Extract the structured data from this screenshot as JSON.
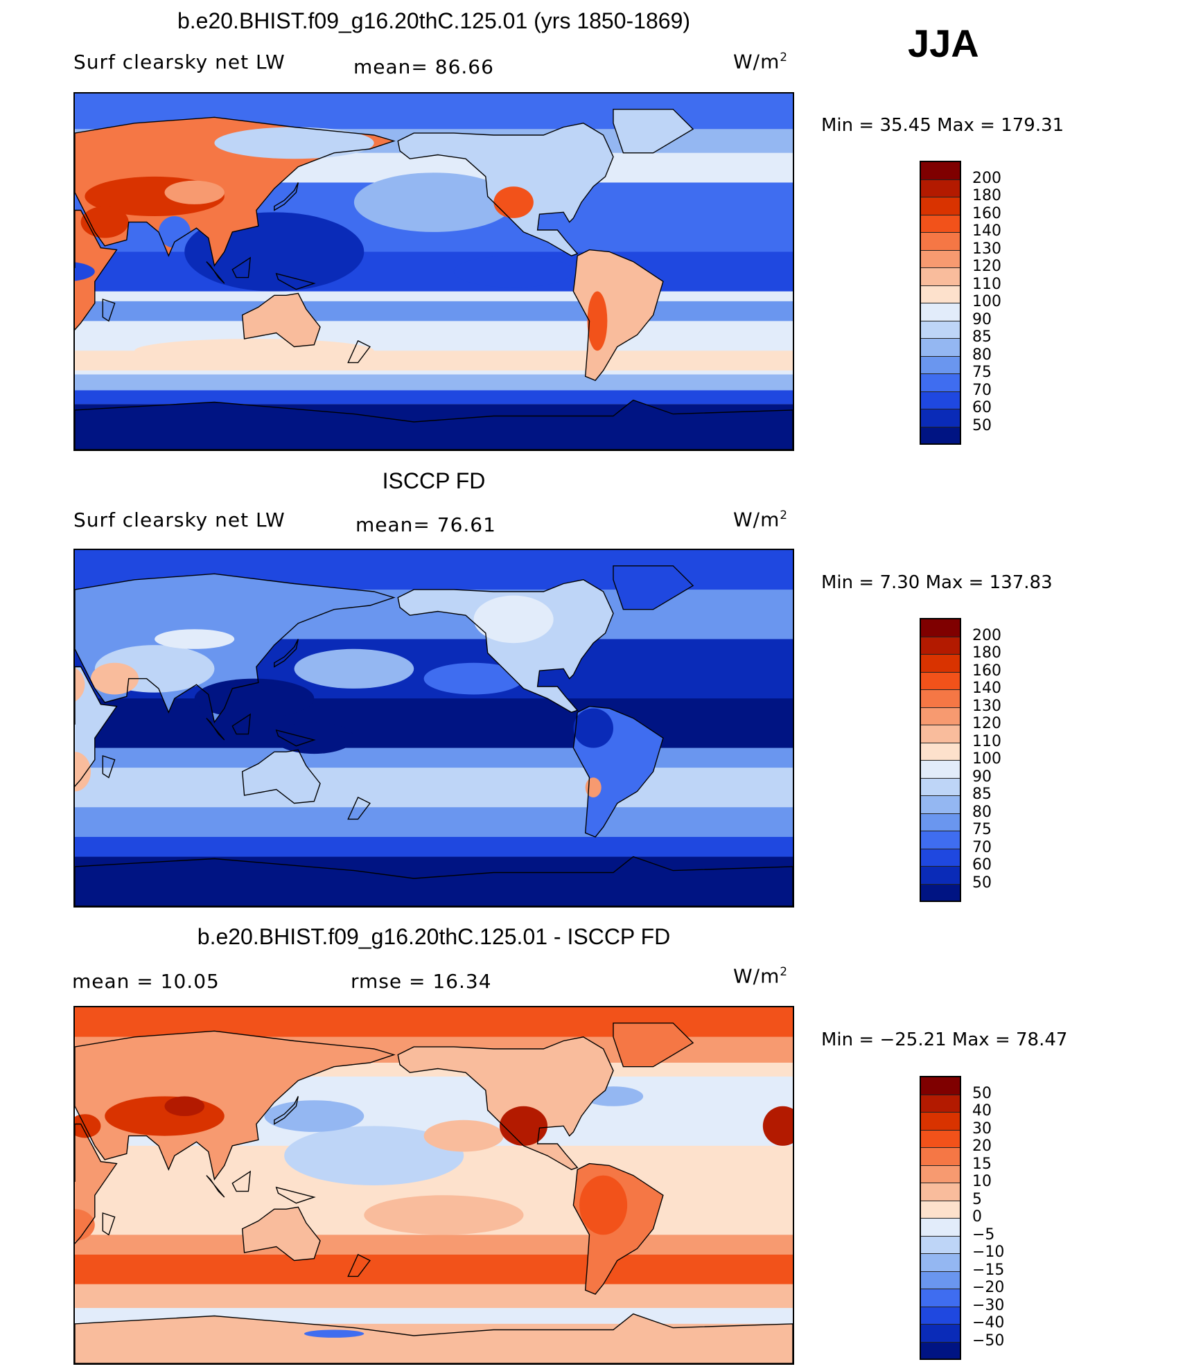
{
  "season": "JJA",
  "panels": [
    {
      "title": "b.e20.BHIST.f09_g16.20thC.125.01 (yrs 1850-1869)",
      "left_label": "Surf clearsky net LW",
      "mid_label": "mean=   86.66",
      "units": "W/m",
      "units_sup": "2",
      "minmax": "Min =    35.45  Max  =  179.31",
      "colorbar": {
        "levels": [
          "200",
          "180",
          "160",
          "140",
          "130",
          "120",
          "110",
          "100",
          "90",
          "85",
          "80",
          "75",
          "70",
          "60",
          "50"
        ],
        "colors": [
          "#7f0000",
          "#b31a00",
          "#d93300",
          "#f2521a",
          "#f57745",
          "#f79a70",
          "#f9bc9c",
          "#fde1cc",
          "#e2ecfa",
          "#bed5f7",
          "#94b7f2",
          "#6a96ef",
          "#3f6df0",
          "#1f48e0",
          "#0a2bb8",
          "#001483"
        ]
      },
      "map_scheme": "abs"
    },
    {
      "title": "ISCCP FD",
      "left_label": "Surf clearsky net LW",
      "mid_label": "mean=   76.61",
      "units": "W/m",
      "units_sup": "2",
      "minmax": "Min =      7.30  Max  =  137.83",
      "colorbar": {
        "levels": [
          "200",
          "180",
          "160",
          "140",
          "130",
          "120",
          "110",
          "100",
          "90",
          "85",
          "80",
          "75",
          "70",
          "60",
          "50"
        ],
        "colors": [
          "#7f0000",
          "#b31a00",
          "#d93300",
          "#f2521a",
          "#f57745",
          "#f79a70",
          "#f9bc9c",
          "#fde1cc",
          "#e2ecfa",
          "#bed5f7",
          "#94b7f2",
          "#6a96ef",
          "#3f6df0",
          "#1f48e0",
          "#0a2bb8",
          "#001483"
        ]
      },
      "map_scheme": "obs"
    },
    {
      "title": "b.e20.BHIST.f09_g16.20thC.125.01 - ISCCP FD",
      "left_label": "mean =    10.05",
      "mid_label": "rmse  =    16.34",
      "units": "W/m",
      "units_sup": "2",
      "minmax": "Min = −25.21  Max  =    78.47",
      "colorbar": {
        "levels": [
          "50",
          "40",
          "30",
          "20",
          "15",
          "10",
          "5",
          "0",
          "−5",
          "−10",
          "−15",
          "−20",
          "−30",
          "−40",
          "−50"
        ],
        "colors": [
          "#7f0000",
          "#b31a00",
          "#d93300",
          "#f2521a",
          "#f57745",
          "#f79a70",
          "#f9bc9c",
          "#fde1cc",
          "#e2ecfa",
          "#bed5f7",
          "#94b7f2",
          "#6a96ef",
          "#3f6df0",
          "#1f48e0",
          "#0a2bb8",
          "#001483"
        ]
      },
      "map_scheme": "diff"
    }
  ]
}
